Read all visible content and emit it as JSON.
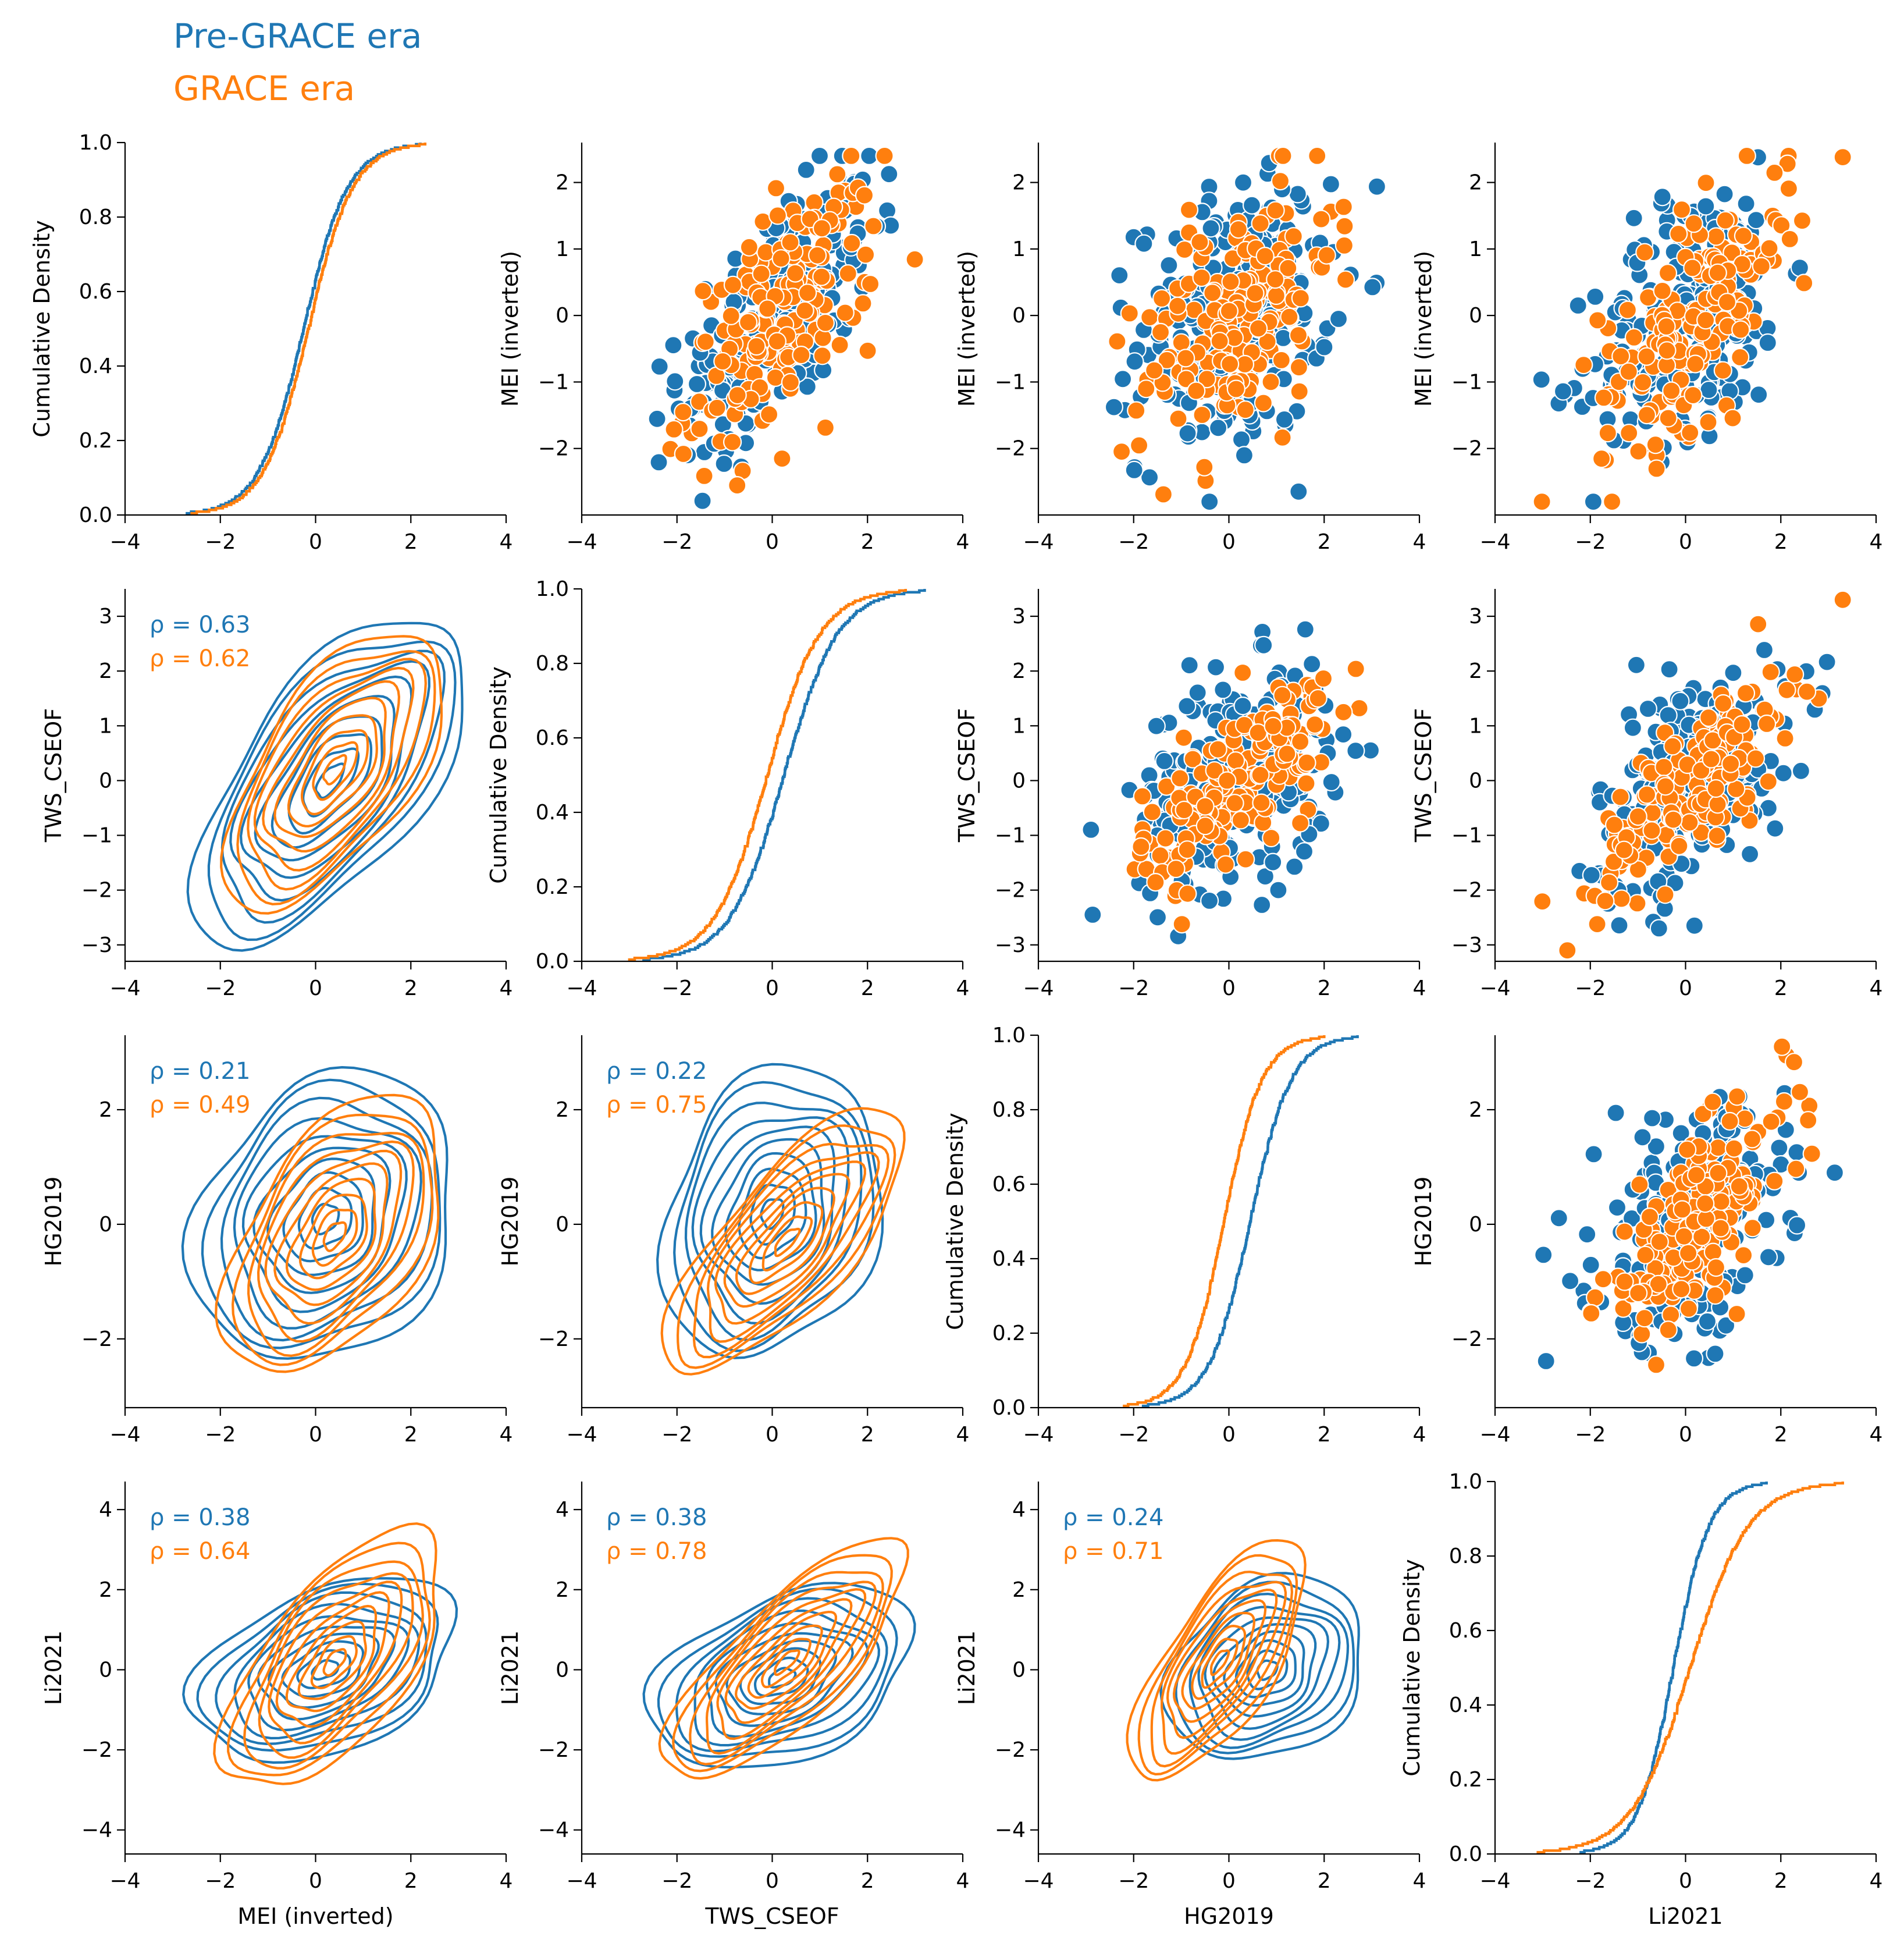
{
  "legend": {
    "pre": "Pre-GRACE era",
    "grace": "GRACE era",
    "pre_color": "#1f77b4",
    "grace_color": "#ff7f0e"
  },
  "chart_data": {
    "type": "pairplot",
    "variables": [
      "MEI (inverted)",
      "TWS_CSEOF",
      "HG2019",
      "Li2021"
    ],
    "diagonal": {
      "type": "ecdf",
      "ylabel": "Cumulative Density",
      "yticks": [
        "0.0",
        "0.2",
        "0.4",
        "0.6",
        "0.8",
        "1.0"
      ],
      "ylim": [
        0,
        1
      ],
      "xlim": [
        -4,
        4
      ],
      "series_ranges": [
        {
          "variable": "MEI (inverted)",
          "pre": [
            -2.7,
            2.2
          ],
          "grace": [
            -2.6,
            2.3
          ]
        },
        {
          "variable": "TWS_CSEOF",
          "pre": [
            -2.7,
            3.2
          ],
          "grace": [
            -3.0,
            2.8
          ]
        },
        {
          "variable": "HG2019",
          "pre": [
            -1.8,
            2.7
          ],
          "grace": [
            -2.2,
            2.0
          ]
        },
        {
          "variable": "Li2021",
          "pre": [
            -2.2,
            1.7
          ],
          "grace": [
            -3.1,
            3.3
          ]
        }
      ]
    },
    "xticks": [
      "−4",
      "−2",
      "0",
      "2",
      "4"
    ],
    "xlim": [
      -4,
      4
    ],
    "ylims": [
      [
        -3,
        2.6
      ],
      [
        -3.3,
        3.5
      ],
      [
        -3.2,
        3.3
      ],
      [
        -4.6,
        4.7
      ]
    ],
    "yticks": [
      [
        "−2",
        "−1",
        "0",
        "1",
        "2"
      ],
      [
        "−3",
        "−2",
        "−1",
        "0",
        "1",
        "2",
        "3"
      ],
      [
        "−2",
        "0",
        "2"
      ],
      [
        "−4",
        "−2",
        "0",
        "2",
        "4"
      ]
    ],
    "lower_kde_correlations": [
      {
        "row": "TWS_CSEOF",
        "col": "MEI (inverted)",
        "pre": "ρ = 0.63",
        "grace": "ρ = 0.62"
      },
      {
        "row": "HG2019",
        "col": "MEI (inverted)",
        "pre": "ρ = 0.21",
        "grace": "ρ = 0.49"
      },
      {
        "row": "HG2019",
        "col": "TWS_CSEOF",
        "pre": "ρ = 0.22",
        "grace": "ρ = 0.75"
      },
      {
        "row": "Li2021",
        "col": "MEI (inverted)",
        "pre": "ρ = 0.38",
        "grace": "ρ = 0.64"
      },
      {
        "row": "Li2021",
        "col": "TWS_CSEOF",
        "pre": "ρ = 0.38",
        "grace": "ρ = 0.78"
      },
      {
        "row": "Li2021",
        "col": "HG2019",
        "pre": "ρ = 0.24",
        "grace": "ρ = 0.71"
      }
    ],
    "upper_scatter": {
      "type": "scatter",
      "points_per_era": {
        "pre": 240,
        "grace": 180
      }
    },
    "kde_params": {
      "TWS_CSEOF|MEI (inverted)": {
        "pre": {
          "center": [
            0.3,
            0.0
          ],
          "sx": 1.25,
          "sy": 1.3,
          "rho": 0.63
        },
        "grace": {
          "center": [
            0.4,
            0.2
          ],
          "sx": 1.0,
          "sy": 1.1,
          "rho": 0.62
        }
      },
      "HG2019|MEI (inverted)": {
        "pre": {
          "center": [
            0.2,
            0.1
          ],
          "sx": 1.2,
          "sy": 1.1,
          "rho": 0.21
        },
        "grace": {
          "center": [
            0.4,
            -0.2
          ],
          "sx": 1.0,
          "sy": 1.05,
          "rho": 0.49
        }
      },
      "HG2019|TWS_CSEOF": {
        "pre": {
          "center": [
            0.0,
            0.2
          ],
          "sx": 1.0,
          "sy": 1.1,
          "rho": 0.22
        },
        "grace": {
          "center": [
            0.3,
            -0.3
          ],
          "sx": 1.1,
          "sy": 1.0,
          "rho": 0.75
        }
      },
      "Li2021|MEI (inverted)": {
        "pre": {
          "center": [
            0.2,
            0.0
          ],
          "sx": 1.2,
          "sy": 1.0,
          "rho": 0.38
        },
        "grace": {
          "center": [
            0.4,
            0.2
          ],
          "sx": 1.0,
          "sy": 1.4,
          "rho": 0.64
        }
      },
      "Li2021|TWS_CSEOF": {
        "pre": {
          "center": [
            0.2,
            -0.2
          ],
          "sx": 1.2,
          "sy": 1.0,
          "rho": 0.38
        },
        "grace": {
          "center": [
            0.3,
            0.2
          ],
          "sx": 1.1,
          "sy": 1.3,
          "rho": 0.78
        }
      },
      "Li2021|HG2019": {
        "pre": {
          "center": [
            0.8,
            0.0
          ],
          "sx": 0.9,
          "sy": 1.0,
          "rho": 0.24
        },
        "grace": {
          "center": [
            -0.2,
            0.2
          ],
          "sx": 0.8,
          "sy": 1.3,
          "rho": 0.71
        }
      }
    }
  }
}
